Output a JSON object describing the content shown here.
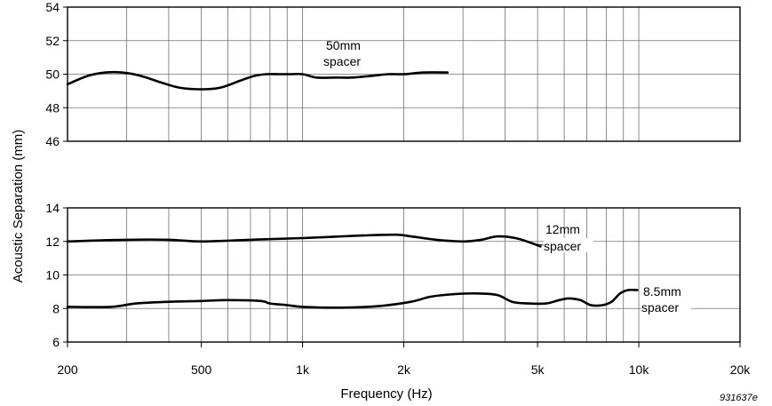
{
  "figure_id": "931637e",
  "chart_data": [
    {
      "type": "line",
      "x_scale": "log",
      "xlim": [
        200,
        20000
      ],
      "ylim": [
        46,
        54
      ],
      "yticks": [
        46,
        48,
        50,
        52,
        54
      ],
      "grid": true,
      "series": [
        {
          "name": "50mm spacer",
          "x": [
            200,
            230,
            260,
            290,
            330,
            380,
            430,
            500,
            570,
            650,
            720,
            780,
            850,
            920,
            1000,
            1100,
            1250,
            1400,
            1600,
            1800,
            2000,
            2300,
            2700
          ],
          "y": [
            49.4,
            49.9,
            50.1,
            50.1,
            49.9,
            49.5,
            49.2,
            49.1,
            49.2,
            49.6,
            49.9,
            50.0,
            50.0,
            50.0,
            50.0,
            49.8,
            49.8,
            49.8,
            49.9,
            50.0,
            50.0,
            50.1,
            50.1
          ]
        }
      ]
    },
    {
      "type": "line",
      "x_scale": "log",
      "xlim": [
        200,
        20000
      ],
      "ylim": [
        6,
        14
      ],
      "yticks": [
        6,
        8,
        10,
        12,
        14
      ],
      "xticks": [
        200,
        500,
        1000,
        2000,
        5000,
        10000,
        20000
      ],
      "xtick_labels": [
        "200",
        "500",
        "1k",
        "2k",
        "5k",
        "10k",
        "20k"
      ],
      "xlabel": "Frequency (Hz)",
      "grid": true,
      "series": [
        {
          "name": "12mm spacer",
          "x": [
            200,
            300,
            400,
            500,
            700,
            1000,
            1500,
            1900,
            2100,
            2500,
            3000,
            3400,
            3800,
            4300,
            4800,
            5100
          ],
          "y": [
            12.0,
            12.1,
            12.1,
            12.0,
            12.1,
            12.2,
            12.35,
            12.4,
            12.3,
            12.1,
            12.0,
            12.1,
            12.3,
            12.2,
            11.9,
            11.7
          ]
        },
        {
          "name": "8.5mm spacer",
          "x": [
            200,
            270,
            320,
            400,
            500,
            600,
            750,
            800,
            900,
            1000,
            1300,
            1700,
            2100,
            2400,
            2800,
            3300,
            3800,
            4200,
            4700,
            5300,
            5800,
            6200,
            6700,
            7200,
            7800,
            8300,
            8800,
            9300,
            9900
          ],
          "y": [
            8.1,
            8.1,
            8.3,
            8.4,
            8.45,
            8.5,
            8.45,
            8.3,
            8.2,
            8.1,
            8.05,
            8.15,
            8.4,
            8.7,
            8.85,
            8.9,
            8.8,
            8.4,
            8.3,
            8.3,
            8.5,
            8.6,
            8.5,
            8.2,
            8.2,
            8.4,
            8.9,
            9.1,
            9.1
          ]
        }
      ]
    }
  ],
  "shared_ylabel": "Acoustic Separation (mm)",
  "annotations": [
    {
      "lines": [
        "50mm",
        "spacer"
      ]
    },
    {
      "lines": [
        "12mm",
        "spacer"
      ]
    },
    {
      "lines": [
        "8.5mm",
        "spacer"
      ]
    }
  ]
}
